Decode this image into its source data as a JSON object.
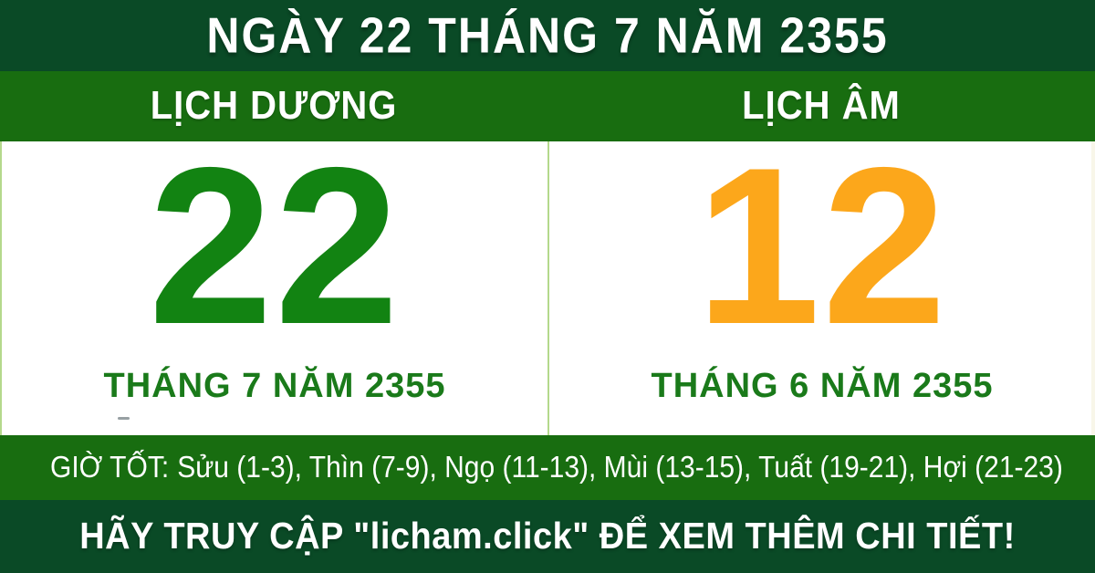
{
  "banner": {
    "date_title": "NGÀY 22 THÁNG 7 NĂM 2355",
    "footer_cta": "HÃY TRUY CẬP \"licham.click\" ĐỂ XEM THÊM CHI TIẾT!"
  },
  "solar_calendar": {
    "header": "LỊCH DƯƠNG",
    "day": "22",
    "month_year": "THÁNG 7 NĂM 2355"
  },
  "lunar_calendar": {
    "header": "LỊCH ÂM",
    "day": "12",
    "month_year": "THÁNG 6 NĂM 2355"
  },
  "good_hours": {
    "label": "GIỜ TỐT:",
    "hours": "Sửu (1-3), Thìn (7-9), Ngọ (11-13), Mùi (13-15), Tuất (19-21), Hợi (21-23)"
  },
  "colors": {
    "dark_green": "#0A4A26",
    "bar_green": "#186D10",
    "solar_day_green": "#128312",
    "month_text_green": "#1A7A1A",
    "lunar_day_orange": "#FCA71B",
    "divider_light_green": "#B4D98C",
    "panel_background": "#FFFFFF"
  }
}
